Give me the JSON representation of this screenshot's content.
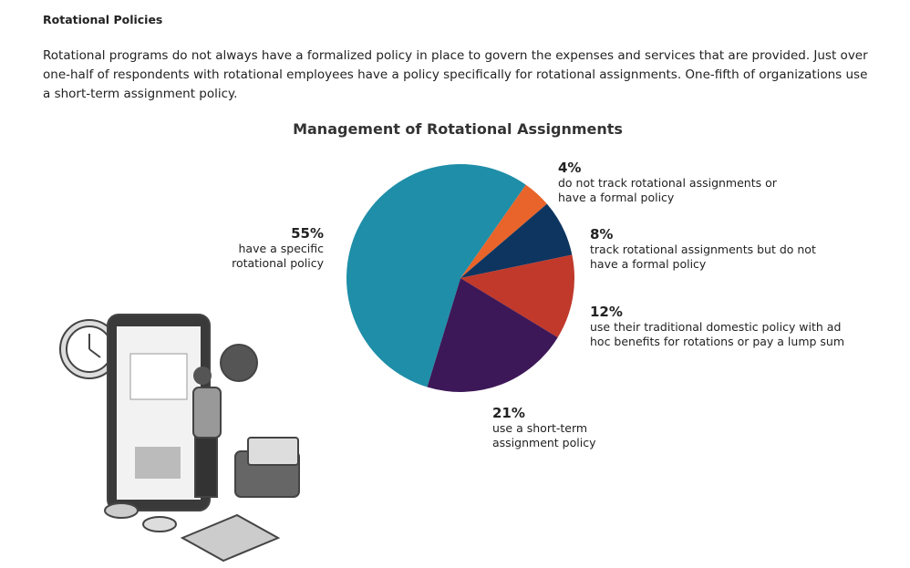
{
  "heading": "Rotational Policies",
  "paragraph": "Rotational programs do not always have a formalized policy in place to govern the expenses and services that are provided. Just over one-half of respondents with rotational employees have a policy specifically for rotational assignments. One-fifth of organizations use a short-term assignment policy.",
  "chart_data": {
    "type": "pie",
    "title": "Management of Rotational Assignments",
    "categories": [
      "do not track rotational assignments or have a formal policy",
      "track rotational assignments but do not have a formal policy",
      "use their traditional domestic policy with ad hoc benefits for rotations or pay a lump sum",
      "use a short-term assignment policy",
      "have a specific rotational policy"
    ],
    "values": [
      4,
      8,
      12,
      21,
      55
    ],
    "value_labels": [
      "4%",
      "8%",
      "12%",
      "21%",
      "55%"
    ],
    "colors": [
      "#e8642a",
      "#0d3560",
      "#c0392b",
      "#3d1858",
      "#1f8ea8"
    ]
  }
}
